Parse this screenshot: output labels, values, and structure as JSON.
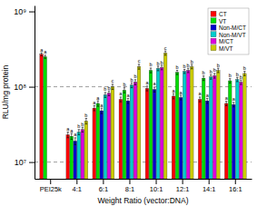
{
  "chart_data": {
    "type": "bar",
    "categories": [
      "PEI25k",
      "4:1",
      "6:1",
      "8:1",
      "10:1",
      "12:1",
      "14:1",
      "16:1"
    ],
    "series": [
      {
        "name": "CT",
        "color": "#ff0000",
        "values": [
          270000000,
          23000000,
          52000000,
          68000000,
          95000000,
          75000000,
          68000000,
          60000000
        ],
        "errors": [
          12000000,
          2000000,
          4000000,
          5000000,
          7000000,
          6000000,
          5000000,
          4000000
        ],
        "letters": [
          "a",
          "a",
          "a",
          "a",
          "a",
          "a",
          "a",
          "a"
        ]
      },
      {
        "name": "VT",
        "color": "#00dd00",
        "values": [
          250000000,
          22000000,
          60000000,
          90000000,
          165000000,
          155000000,
          130000000,
          120000000
        ],
        "errors": [
          12000000,
          2000000,
          5000000,
          7000000,
          12000000,
          10000000,
          9000000,
          8000000
        ],
        "letters": [
          "a",
          "a",
          "a",
          "b",
          "b",
          "b",
          "b",
          "b"
        ]
      },
      {
        "name": "Non-M/CT",
        "color": "#0000cc",
        "values": [
          null,
          19000000,
          48000000,
          65000000,
          92000000,
          72000000,
          65000000,
          58000000
        ],
        "errors": [
          null,
          2000000,
          4000000,
          5000000,
          7000000,
          5000000,
          5000000,
          4000000
        ],
        "letters": [
          null,
          "a",
          "a",
          "a",
          "a",
          "a",
          "a",
          "a"
        ]
      },
      {
        "name": "Non-M/VT",
        "color": "#00cccc",
        "values": [
          null,
          25000000,
          78000000,
          105000000,
          175000000,
          160000000,
          135000000,
          125000000
        ],
        "errors": [
          null,
          2000000,
          6000000,
          8000000,
          12000000,
          10000000,
          9000000,
          8000000
        ],
        "letters": [
          null,
          "b",
          "b",
          "b",
          "b",
          "b",
          "b",
          "b"
        ]
      },
      {
        "name": "M/CT",
        "color": "#dd00dd",
        "values": [
          null,
          27000000,
          82000000,
          115000000,
          180000000,
          165000000,
          140000000,
          115000000
        ],
        "errors": [
          null,
          2000000,
          6000000,
          9000000,
          12000000,
          11000000,
          10000000,
          8000000
        ],
        "letters": [
          null,
          "b",
          "b",
          "b",
          "b",
          "b",
          "b",
          "b"
        ]
      },
      {
        "name": "M/VT",
        "color": "#cccc00",
        "values": [
          null,
          35000000,
          100000000,
          185000000,
          280000000,
          185000000,
          165000000,
          150000000
        ],
        "errors": [
          null,
          3000000,
          8000000,
          14000000,
          18000000,
          12000000,
          11000000,
          10000000
        ],
        "letters": [
          null,
          "b",
          "c",
          "c",
          "c",
          "b",
          "b",
          "b"
        ]
      }
    ],
    "ylabel": "RLU/mg protein",
    "xlabel": "Weight Ratio (vector:DNA)",
    "log": "y",
    "ylim": [
      6000000,
      1200000000
    ],
    "yticks": [
      {
        "value": 10000000,
        "label": "10⁷"
      },
      {
        "value": 100000000,
        "label": "10⁸"
      },
      {
        "value": 1000000000,
        "label": "10⁹"
      }
    ],
    "reference_lines": [
      10000000,
      100000000
    ],
    "legend": "upper right"
  }
}
